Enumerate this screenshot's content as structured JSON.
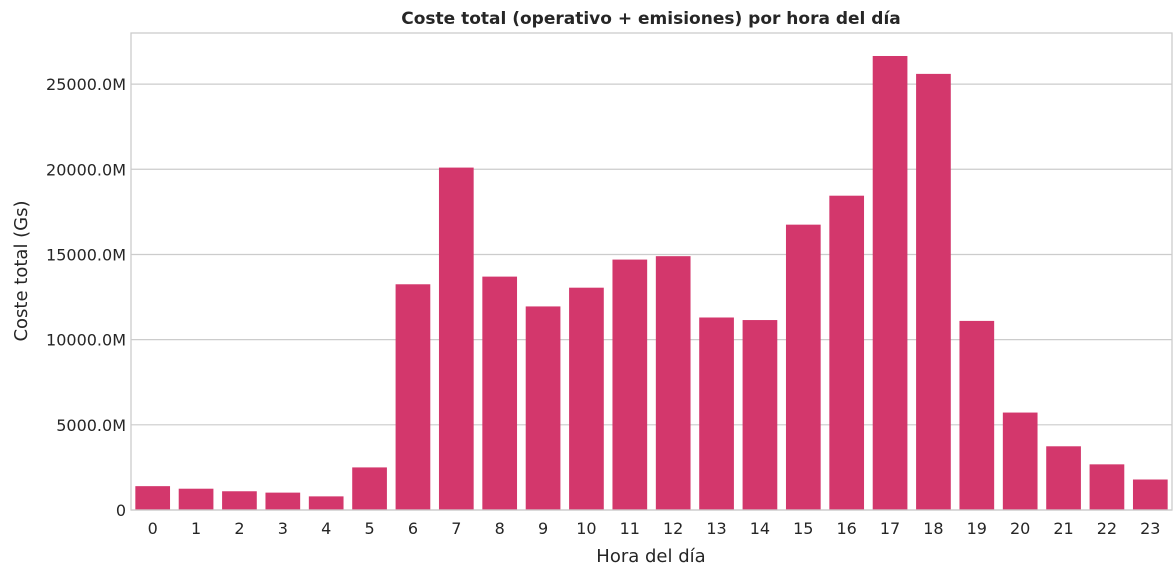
{
  "chart_data": {
    "type": "bar",
    "title": "Coste total (operativo + emisiones) por hora del día",
    "xlabel": "Hora del día",
    "ylabel": "Coste total (Gs)",
    "categories": [
      "0",
      "1",
      "2",
      "3",
      "4",
      "5",
      "6",
      "7",
      "8",
      "9",
      "10",
      "11",
      "12",
      "13",
      "14",
      "15",
      "16",
      "17",
      "18",
      "19",
      "20",
      "21",
      "22",
      "23"
    ],
    "values": [
      1400,
      1250,
      1100,
      1020,
      800,
      2500,
      13250,
      20100,
      13700,
      11950,
      13050,
      14700,
      14900,
      11300,
      11150,
      16750,
      18450,
      26650,
      25600,
      11100,
      5720,
      3740,
      2680,
      1790
    ],
    "value_unit": "M",
    "y_ticks": [
      0,
      5000,
      10000,
      15000,
      20000,
      25000
    ],
    "y_tick_labels": [
      "0",
      "5000.0M",
      "10000.0M",
      "15000.0M",
      "20000.0M",
      "25000.0M"
    ],
    "ylim": [
      0,
      28000
    ],
    "grid": "horizontal",
    "colors": {
      "bar": "#D3376C",
      "grid": "#CCCCCC",
      "axis": "#CCCCCC",
      "text": "#262626"
    }
  }
}
